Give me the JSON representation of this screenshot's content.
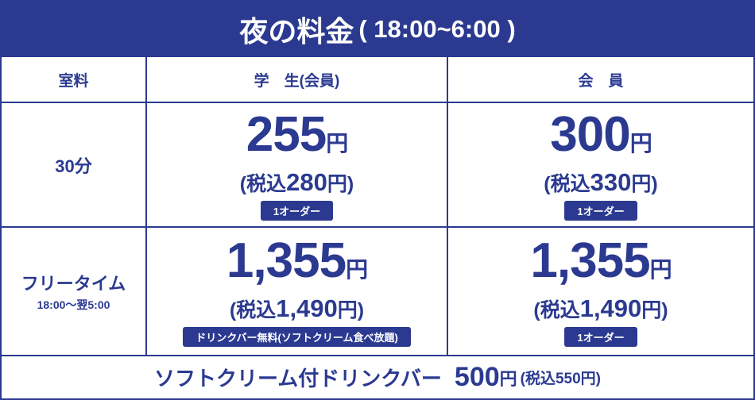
{
  "header": {
    "title": "夜の料金",
    "hours": "( 18:00~6:00 )"
  },
  "table": {
    "columns": [
      "室料",
      "学　生(会員)",
      "会　員"
    ],
    "rows": [
      {
        "label": "30分",
        "cells": [
          {
            "price": "255",
            "unit": "円",
            "tax_open": "(税込",
            "tax_amount": "280",
            "tax_close": "円)",
            "badge": "1オーダー"
          },
          {
            "price": "300",
            "unit": "円",
            "tax_open": "(税込",
            "tax_amount": "330",
            "tax_close": "円)",
            "badge": "1オーダー"
          }
        ]
      },
      {
        "label": "フリータイム",
        "sublabel": "18:00～翌5:00",
        "cells": [
          {
            "price": "1,355",
            "unit": "円",
            "tax_open": "(税込",
            "tax_amount": "1,490",
            "tax_close": "円)",
            "badge": "ドリンクバー無料(ソフトクリーム食べ放題)"
          },
          {
            "price": "1,355",
            "unit": "円",
            "tax_open": "(税込",
            "tax_amount": "1,490",
            "tax_close": "円)",
            "badge": "1オーダー"
          }
        ]
      }
    ]
  },
  "footer": {
    "item": "ソフトクリーム付ドリンクバー",
    "price": "500",
    "unit": "円",
    "tax": "(税込550円)"
  }
}
